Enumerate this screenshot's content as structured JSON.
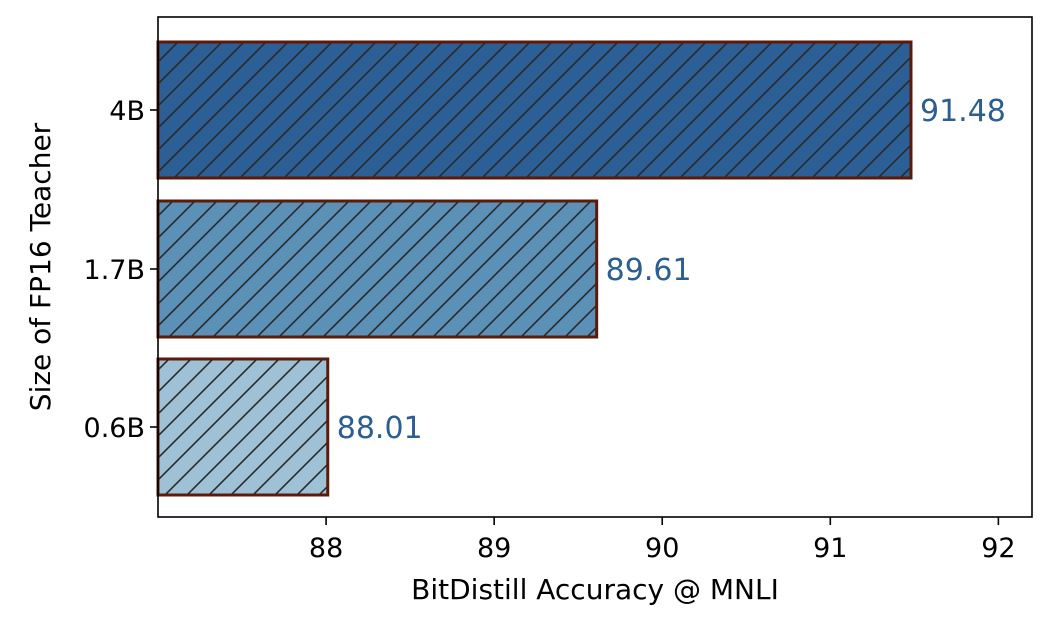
{
  "chart_data": {
    "type": "bar",
    "orientation": "horizontal",
    "title": "",
    "xlabel": "BitDistill Accuracy @ MNLI",
    "ylabel": "Size of FP16 Teacher",
    "categories": [
      "4B",
      "1.7B",
      "0.6B"
    ],
    "values": [
      91.48,
      89.61,
      88.01
    ],
    "value_labels": [
      "91.48",
      "89.61",
      "88.01"
    ],
    "xlim": [
      87.0,
      92.2
    ],
    "xticks": [
      88,
      89,
      90,
      91,
      92
    ],
    "xtick_labels": [
      "88",
      "89",
      "90",
      "91",
      "92"
    ],
    "grid": false,
    "legend": false,
    "hatch": "diagonal",
    "colors": {
      "bars": [
        "#2c5f95",
        "#5b90b7",
        "#9ec1d6"
      ],
      "edge": "#5c1a08",
      "hatch": "#2a2a2a",
      "value_label": "#2b5e92"
    }
  }
}
